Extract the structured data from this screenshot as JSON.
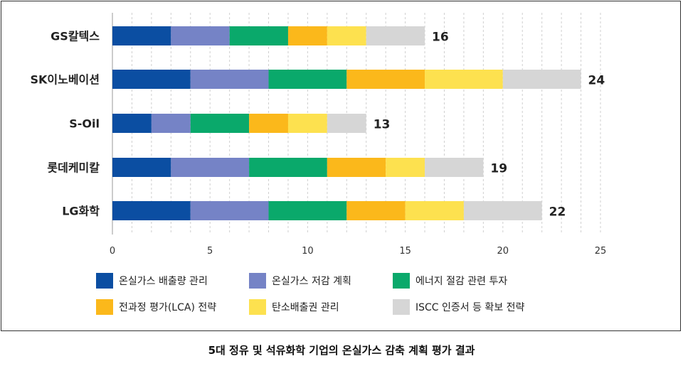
{
  "chart_data": {
    "type": "bar",
    "orientation": "horizontal",
    "stacked": true,
    "categories": [
      "GS칼텍스",
      "SK이노베이션",
      "S-Oil",
      "롯데케미칼",
      "LG화학"
    ],
    "series": [
      {
        "name": "온실가스 배출량 관리",
        "color": "#0b4ea2",
        "values": [
          3,
          4,
          2,
          3,
          4
        ]
      },
      {
        "name": "온실가스 저감 계획",
        "color": "#7583c6",
        "values": [
          3,
          4,
          2,
          4,
          4
        ]
      },
      {
        "name": "에너지 절감 관련 투자",
        "color": "#0aa96b",
        "values": [
          3,
          4,
          3,
          4,
          4
        ]
      },
      {
        "name": "전과정 평가(LCA) 전략",
        "color": "#fbb81b",
        "values": [
          2,
          4,
          2,
          3,
          3
        ]
      },
      {
        "name": "탄소배출권 관리",
        "color": "#fde14f",
        "values": [
          2,
          4,
          2,
          2,
          3
        ]
      },
      {
        "name": "ISCC 인증서 등 확보 전략",
        "color": "#d6d6d6",
        "values": [
          3,
          4,
          2,
          3,
          4
        ]
      }
    ],
    "totals": [
      "16",
      "24",
      "13",
      "19",
      "22"
    ],
    "xlim": [
      0,
      25
    ],
    "xticks": [
      "0",
      "5",
      "10",
      "15",
      "20",
      "25"
    ],
    "grid": true,
    "legend_position": "bottom"
  },
  "caption": "5대 정유 및 석유화학 기업의 온실가스 감축 계획 평가 결과"
}
